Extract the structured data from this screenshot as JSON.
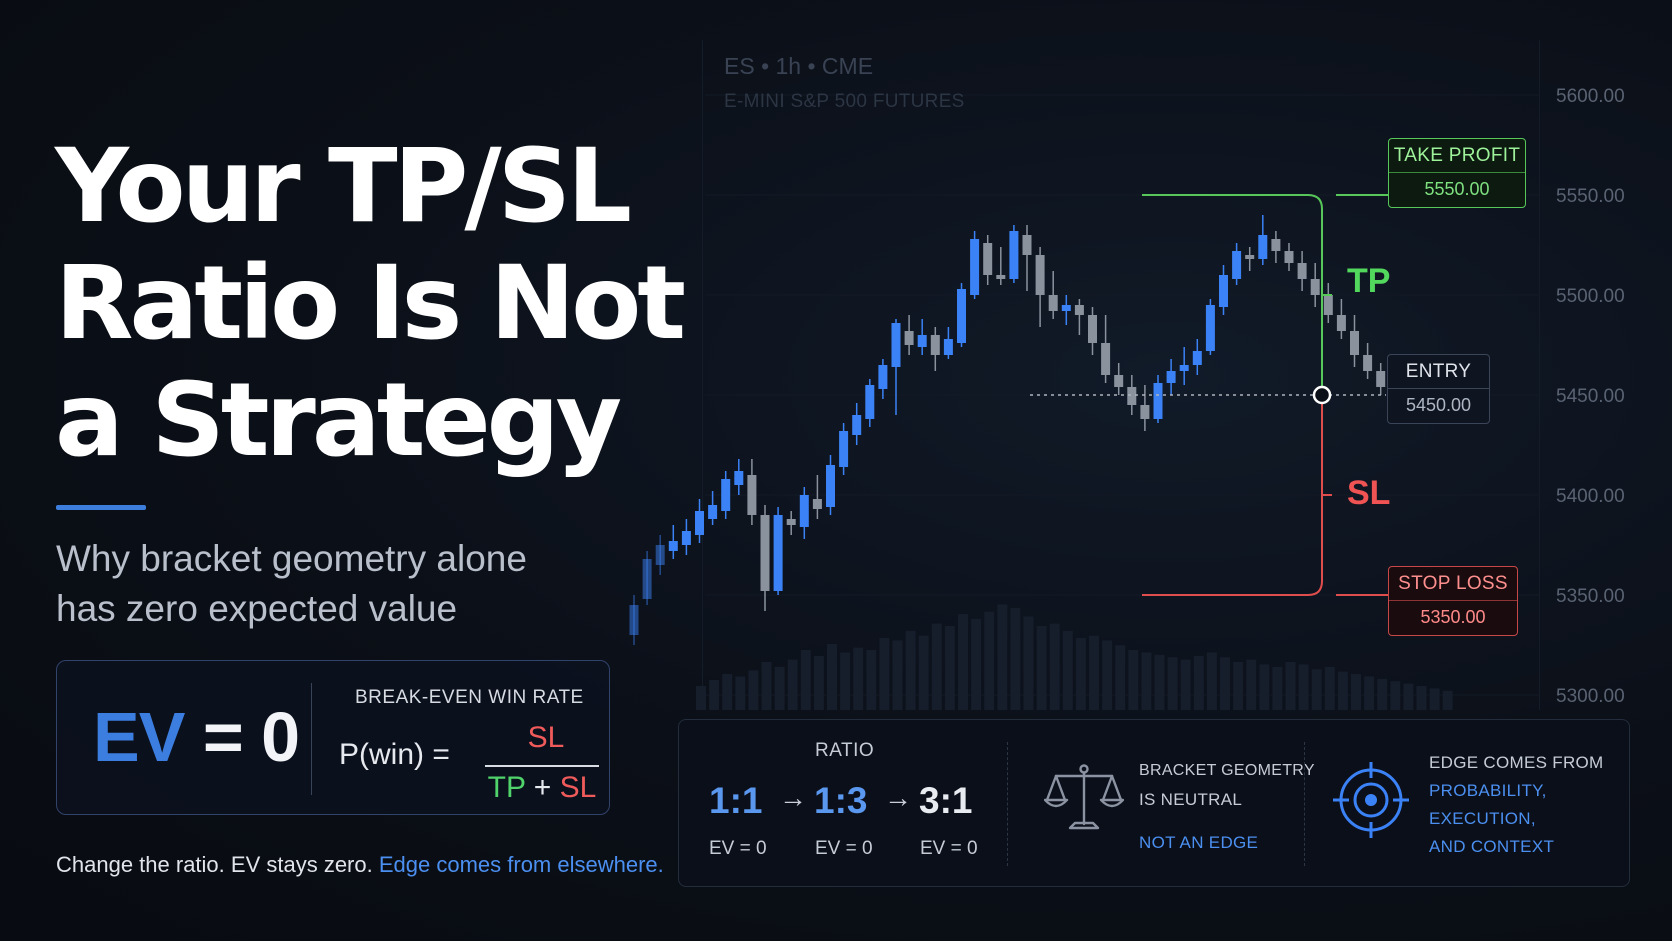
{
  "headline": {
    "line1": "Your TP/SL",
    "line2": "Ratio Is Not",
    "line3": "a Strategy"
  },
  "subtitle": {
    "line1": "Why bracket geometry alone",
    "line2": "has zero expected value"
  },
  "ev_box": {
    "ev_word": "EV",
    "ev_rest": " = 0",
    "break_even_label": "BREAK-EVEN WIN RATE",
    "formula_lhs": "P(win) =",
    "numerator": "SL",
    "denominator_tp": "TP",
    "denominator_plus": " + ",
    "denominator_sl": "SL"
  },
  "footer": {
    "text": "Change the ratio. EV stays zero.",
    "link": "Edge comes from elsewhere."
  },
  "chart_header": {
    "title": "ES  •  1h  •  CME",
    "subtitle": "E-MINI S&P 500 FUTURES"
  },
  "levels": {
    "tp_label": "TAKE PROFIT",
    "tp_value": "5550.00",
    "entry_label": "ENTRY",
    "entry_value": "5450.00",
    "sl_label": "STOP LOSS",
    "sl_value": "5350.00",
    "tp_short": "TP",
    "sl_short": "SL"
  },
  "colors": {
    "up": "#3b82f6",
    "down": "#8a929e",
    "tp": "#58c75a",
    "sl": "#e04d4d",
    "accent": "#3d7ddb"
  },
  "chart_data": {
    "type": "candlestick",
    "y_ticks": [
      "5600.00",
      "5550.00",
      "5500.00",
      "5450.00",
      "5400.00",
      "5350.00",
      "5300.00"
    ],
    "ylim": [
      5300,
      5600
    ],
    "take_profit": 5550,
    "entry": 5450,
    "stop_loss": 5350,
    "candles": [
      [
        5330,
        5345,
        5325,
        5350
      ],
      [
        5348,
        5368,
        5345,
        5372
      ],
      [
        5365,
        5375,
        5360,
        5380
      ],
      [
        5372,
        5377,
        5368,
        5385
      ],
      [
        5375,
        5382,
        5370,
        5388
      ],
      [
        5380,
        5392,
        5376,
        5398
      ],
      [
        5388,
        5395,
        5385,
        5402
      ],
      [
        5392,
        5408,
        5388,
        5412
      ],
      [
        5405,
        5412,
        5400,
        5418
      ],
      [
        5410,
        5390,
        5385,
        5418
      ],
      [
        5390,
        5352,
        5342,
        5395
      ],
      [
        5352,
        5390,
        5350,
        5394
      ],
      [
        5388,
        5385,
        5380,
        5392
      ],
      [
        5384,
        5400,
        5378,
        5404
      ],
      [
        5398,
        5393,
        5388,
        5410
      ],
      [
        5394,
        5415,
        5390,
        5420
      ],
      [
        5414,
        5432,
        5410,
        5436
      ],
      [
        5430,
        5440,
        5425,
        5446
      ],
      [
        5438,
        5455,
        5434,
        5458
      ],
      [
        5453,
        5465,
        5448,
        5468
      ],
      [
        5464,
        5486,
        5440,
        5488
      ],
      [
        5482,
        5475,
        5470,
        5490
      ],
      [
        5474,
        5480,
        5470,
        5488
      ],
      [
        5480,
        5470,
        5462,
        5484
      ],
      [
        5470,
        5478,
        5468,
        5484
      ],
      [
        5476,
        5503,
        5474,
        5506
      ],
      [
        5500,
        5528,
        5498,
        5532
      ],
      [
        5526,
        5510,
        5505,
        5530
      ],
      [
        5510,
        5508,
        5505,
        5524
      ],
      [
        5508,
        5532,
        5506,
        5535
      ],
      [
        5530,
        5520,
        5502,
        5535
      ],
      [
        5520,
        5500,
        5484,
        5524
      ],
      [
        5500,
        5492,
        5488,
        5512
      ],
      [
        5492,
        5495,
        5485,
        5500
      ],
      [
        5495,
        5490,
        5480,
        5498
      ],
      [
        5490,
        5476,
        5470,
        5494
      ],
      [
        5476,
        5460,
        5456,
        5490
      ],
      [
        5460,
        5454,
        5450,
        5466
      ],
      [
        5454,
        5445,
        5440,
        5460
      ],
      [
        5445,
        5438,
        5432,
        5455
      ],
      [
        5438,
        5456,
        5436,
        5460
      ],
      [
        5456,
        5462,
        5450,
        5468
      ],
      [
        5462,
        5465,
        5455,
        5474
      ],
      [
        5465,
        5472,
        5460,
        5478
      ],
      [
        5472,
        5495,
        5470,
        5498
      ],
      [
        5494,
        5510,
        5490,
        5515
      ],
      [
        5508,
        5522,
        5505,
        5526
      ],
      [
        5520,
        5518,
        5512,
        5524
      ],
      [
        5518,
        5530,
        5515,
        5540
      ],
      [
        5528,
        5522,
        5516,
        5532
      ],
      [
        5522,
        5516,
        5512,
        5526
      ],
      [
        5516,
        5508,
        5502,
        5522
      ],
      [
        5508,
        5500,
        5494,
        5516
      ],
      [
        5500,
        5490,
        5486,
        5506
      ],
      [
        5490,
        5482,
        5478,
        5498
      ],
      [
        5482,
        5470,
        5464,
        5490
      ],
      [
        5470,
        5462,
        5458,
        5476
      ],
      [
        5462,
        5454,
        5450,
        5466
      ]
    ],
    "volume_relative": [
      0.2,
      0.25,
      0.3,
      0.28,
      0.33,
      0.4,
      0.36,
      0.42,
      0.5,
      0.45,
      0.55,
      0.48,
      0.52,
      0.5,
      0.6,
      0.58,
      0.66,
      0.62,
      0.72,
      0.7,
      0.8,
      0.76,
      0.82,
      0.88,
      0.85,
      0.78,
      0.7,
      0.72,
      0.66,
      0.6,
      0.62,
      0.58,
      0.54,
      0.5,
      0.48,
      0.46,
      0.44,
      0.42,
      0.45,
      0.48,
      0.44,
      0.4,
      0.42,
      0.38,
      0.36,
      0.4,
      0.38,
      0.34,
      0.36,
      0.32,
      0.3,
      0.28,
      0.26,
      0.24,
      0.22,
      0.2,
      0.18,
      0.16
    ]
  },
  "ratio_panel": {
    "label": "RATIO",
    "items": [
      {
        "ratio": "1:1",
        "ev": "EV = 0"
      },
      {
        "ratio": "1:3",
        "ev": "EV = 0"
      },
      {
        "ratio": "3:1",
        "ev": "EV = 0"
      }
    ],
    "arrow": "→"
  },
  "neutral_panel": {
    "line1": "BRACKET GEOMETRY",
    "line2": "IS NEUTRAL",
    "line3": "NOT AN EDGE",
    "icon": "scales-icon"
  },
  "edge_panel": {
    "line1": "EDGE COMES FROM",
    "line2": "PROBABILITY,",
    "line3": "EXECUTION,",
    "line4": "AND CONTEXT",
    "icon": "target-icon"
  }
}
